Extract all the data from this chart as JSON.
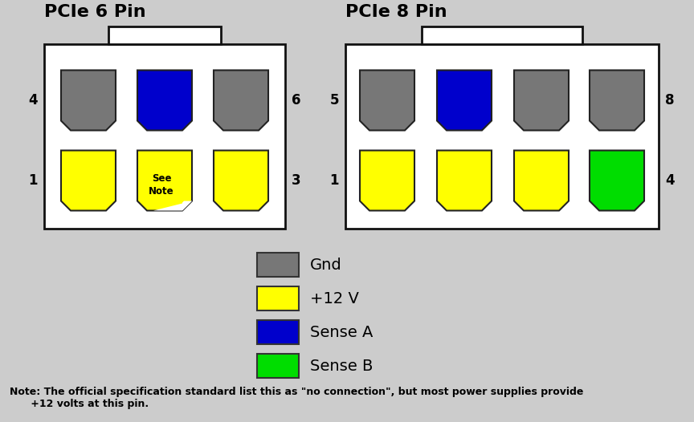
{
  "bg_color": "#cccccc",
  "title_6pin": "PCIe 6 Pin",
  "title_8pin": "PCIe 8 Pin",
  "pin_colors_6_top": [
    "#777777",
    "#0000cc",
    "#777777"
  ],
  "pin_colors_6_bot": [
    "#ffff00",
    "#ffff00",
    "#ffff00"
  ],
  "pin_6_bot_see_note": true,
  "pin_colors_8_top": [
    "#777777",
    "#0000cc",
    "#777777",
    "#777777"
  ],
  "pin_colors_8_bot": [
    "#ffff00",
    "#ffff00",
    "#ffff00",
    "#00dd00"
  ],
  "see_note_text": "See\nNote",
  "legend_items": [
    {
      "color": "#777777",
      "label": "Gnd"
    },
    {
      "color": "#ffff00",
      "label": "+12 V"
    },
    {
      "color": "#0000cc",
      "label": "Sense A"
    },
    {
      "color": "#00dd00",
      "label": "Sense B"
    }
  ],
  "note_text": "Note: The official specification standard list this as \"no connection\", but most power supplies provide\n      +12 volts at this pin.",
  "pin_labels_6": {
    "top_left": "4",
    "top_right": "6",
    "bot_left": "1",
    "bot_right": "3"
  },
  "pin_labels_8": {
    "top_left": "5",
    "top_right": "8",
    "bot_left": "1",
    "bot_right": "4"
  },
  "connector_color": "#ffffff",
  "border_color": "#111111"
}
